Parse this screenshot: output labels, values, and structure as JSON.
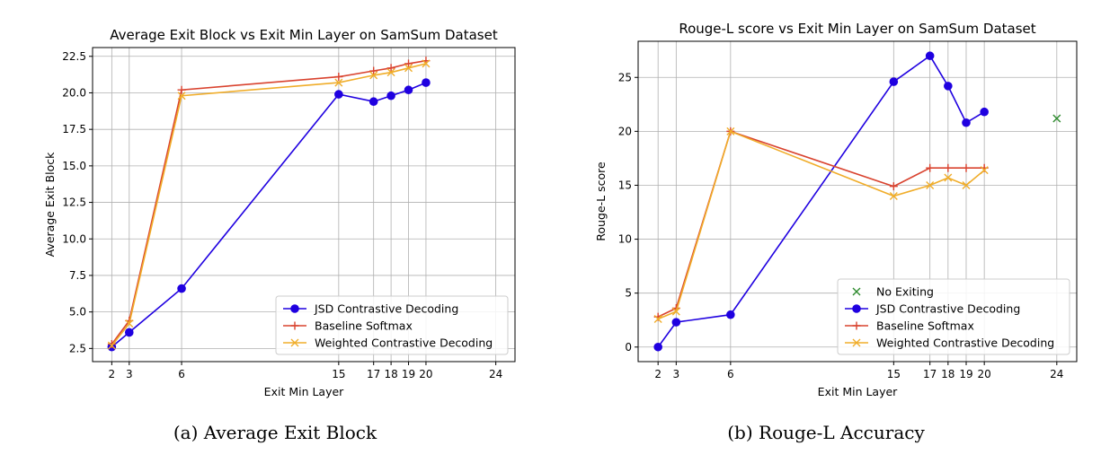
{
  "colors": {
    "jsd": "#1f00e0",
    "baseline": "#d9432f",
    "weighted": "#f0ad2a",
    "no_exit": "#2e8b2e",
    "grid": "#b0b0b0"
  },
  "chart_data": [
    {
      "type": "line",
      "title": "Average Exit Block vs Exit Min Layer on SamSum Dataset",
      "xlabel": "Exit Min Layer",
      "ylabel": "Average Exit Block",
      "xticks": [
        2,
        3,
        6,
        15,
        17,
        18,
        19,
        20,
        24
      ],
      "yticks": [
        2.5,
        5.0,
        7.5,
        10.0,
        12.5,
        15.0,
        17.5,
        20.0,
        22.5
      ],
      "ytick_labels": [
        "2.5",
        "5.0",
        "7.5",
        "10.0",
        "12.5",
        "15.0",
        "17.5",
        "20.0",
        "22.5"
      ],
      "xlim": [
        0.9,
        25.1
      ],
      "ylim": [
        1.6,
        23.1
      ],
      "grid": true,
      "legend_position": "lower-right",
      "series": [
        {
          "name": "JSD Contrastive Decoding",
          "marker": "circle",
          "color_key": "jsd",
          "x": [
            2,
            3,
            6,
            15,
            17,
            18,
            19,
            20
          ],
          "y": [
            2.6,
            3.6,
            6.6,
            19.9,
            19.4,
            19.8,
            20.2,
            20.7
          ]
        },
        {
          "name": "Baseline Softmax",
          "marker": "plus",
          "color_key": "baseline",
          "x": [
            2,
            3,
            6,
            15,
            17,
            18,
            19,
            20
          ],
          "y": [
            2.8,
            4.4,
            20.2,
            21.1,
            21.5,
            21.7,
            22.0,
            22.2
          ]
        },
        {
          "name": "Weighted Contrastive Decoding",
          "marker": "x",
          "color_key": "weighted",
          "x": [
            2,
            3,
            6,
            15,
            17,
            18,
            19,
            20
          ],
          "y": [
            2.7,
            4.2,
            19.8,
            20.7,
            21.2,
            21.4,
            21.7,
            22.0
          ]
        }
      ],
      "caption": "(a) Average Exit Block"
    },
    {
      "type": "line",
      "title": "Rouge-L score vs Exit Min Layer on SamSum Dataset",
      "xlabel": "Exit Min Layer",
      "ylabel": "Rouge-L score",
      "xticks": [
        2,
        3,
        6,
        15,
        17,
        18,
        19,
        20,
        24
      ],
      "yticks": [
        0,
        5,
        10,
        15,
        20,
        25
      ],
      "ytick_labels": [
        "0",
        "5",
        "10",
        "15",
        "20",
        "25"
      ],
      "xlim": [
        0.9,
        25.1
      ],
      "ylim": [
        -1.35,
        28.35
      ],
      "grid": true,
      "legend_position": "lower-right",
      "series": [
        {
          "name": "No Exiting",
          "marker": "x",
          "color_key": "no_exit",
          "line": false,
          "x": [
            24
          ],
          "y": [
            21.2
          ]
        },
        {
          "name": "JSD Contrastive Decoding",
          "marker": "circle",
          "color_key": "jsd",
          "x": [
            2,
            3,
            6,
            15,
            17,
            18,
            19,
            20
          ],
          "y": [
            0.0,
            2.3,
            3.0,
            24.6,
            27.0,
            24.2,
            20.8,
            21.8
          ]
        },
        {
          "name": "Baseline Softmax",
          "marker": "plus",
          "color_key": "baseline",
          "x": [
            2,
            3,
            6,
            15,
            17,
            18,
            19,
            20
          ],
          "y": [
            2.8,
            3.6,
            20.0,
            14.9,
            16.6,
            16.6,
            16.6,
            16.6
          ]
        },
        {
          "name": "Weighted Contrastive Decoding",
          "marker": "x",
          "color_key": "weighted",
          "x": [
            2,
            3,
            6,
            15,
            17,
            18,
            19,
            20
          ],
          "y": [
            2.6,
            3.3,
            20.0,
            14.0,
            15.0,
            15.7,
            15.0,
            16.4
          ]
        }
      ],
      "caption": "(b) Rouge-L Accuracy"
    }
  ]
}
